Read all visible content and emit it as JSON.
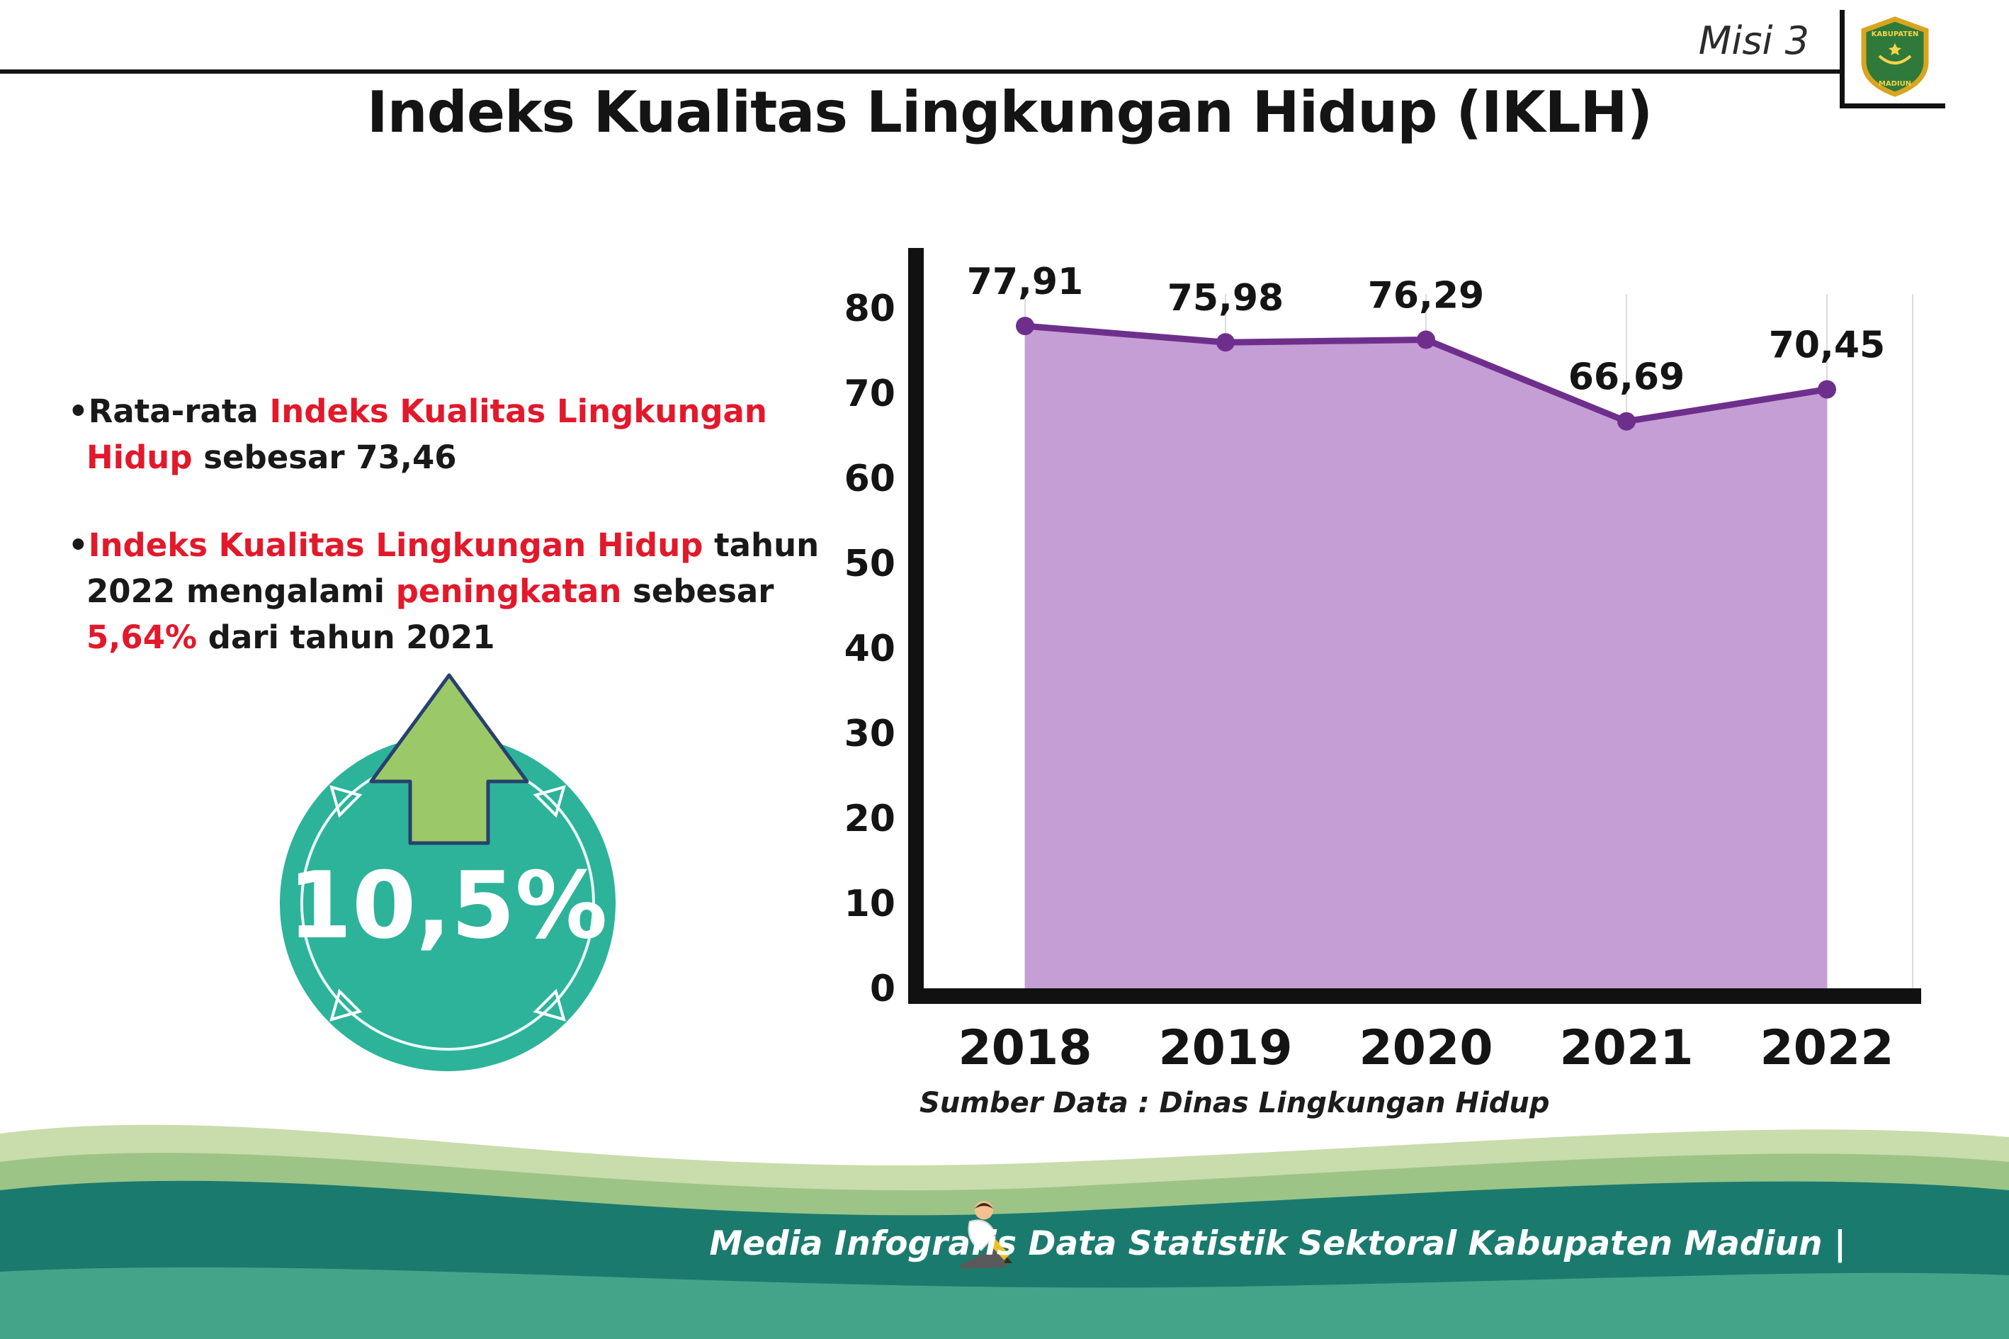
{
  "header": {
    "misi": "Misi 3",
    "title": "Indeks Kualitas Lingkungan Hidup (IKLH)"
  },
  "logo": {
    "top_text": "KABUPATEN",
    "bottom_text": "MADIUN"
  },
  "bullets": {
    "marker": "•",
    "b1": {
      "p1": "Rata-rata ",
      "p2": "Indeks Kualitas Lingkungan Hidup",
      "p3": " sebesar 73,46"
    },
    "b2": {
      "p1": "Indeks Kualitas Lingkungan Hidup",
      "p2": " tahun 2022 mengalami ",
      "p3": "peningkatan",
      "p4": " sebesar ",
      "p5": "5,64%",
      "p6": " dari tahun 2021"
    }
  },
  "badge": {
    "value": "10,5%"
  },
  "colors": {
    "teal": "#2cb39a",
    "arrow_green": "#9cc968",
    "arrow_outline": "#28406e",
    "red": "#e2192b"
  },
  "chart_data": {
    "type": "area",
    "title": "Indeks Kualitas Lingkungan Hidup (IKLH)",
    "categories": [
      "2018",
      "2019",
      "2020",
      "2021",
      "2022"
    ],
    "values": [
      77.91,
      75.98,
      76.29,
      66.69,
      70.45
    ],
    "value_labels": [
      "77,91",
      "75,98",
      "76,29",
      "66,69",
      "70,45"
    ],
    "xlabel": "",
    "ylabel": "",
    "ylim": [
      0,
      80
    ],
    "yticks": [
      0,
      10,
      20,
      30,
      40,
      50,
      60,
      70,
      80
    ],
    "grid": true,
    "legend": "none",
    "source": "Sumber Data : Dinas Lingkungan Hidup",
    "line_color": "#6e2f8c",
    "fill_color": "#c59ed6",
    "point_color": "#6e2f8c"
  },
  "footer": {
    "text": "Media Infografis Data Statistik Sektoral Kabupaten Madiun |",
    "wave_sage": "#c9dcab",
    "wave_mid": "#9cc487",
    "wave_teal": "#1b7a6e",
    "wave_bottom": "#44a489"
  }
}
